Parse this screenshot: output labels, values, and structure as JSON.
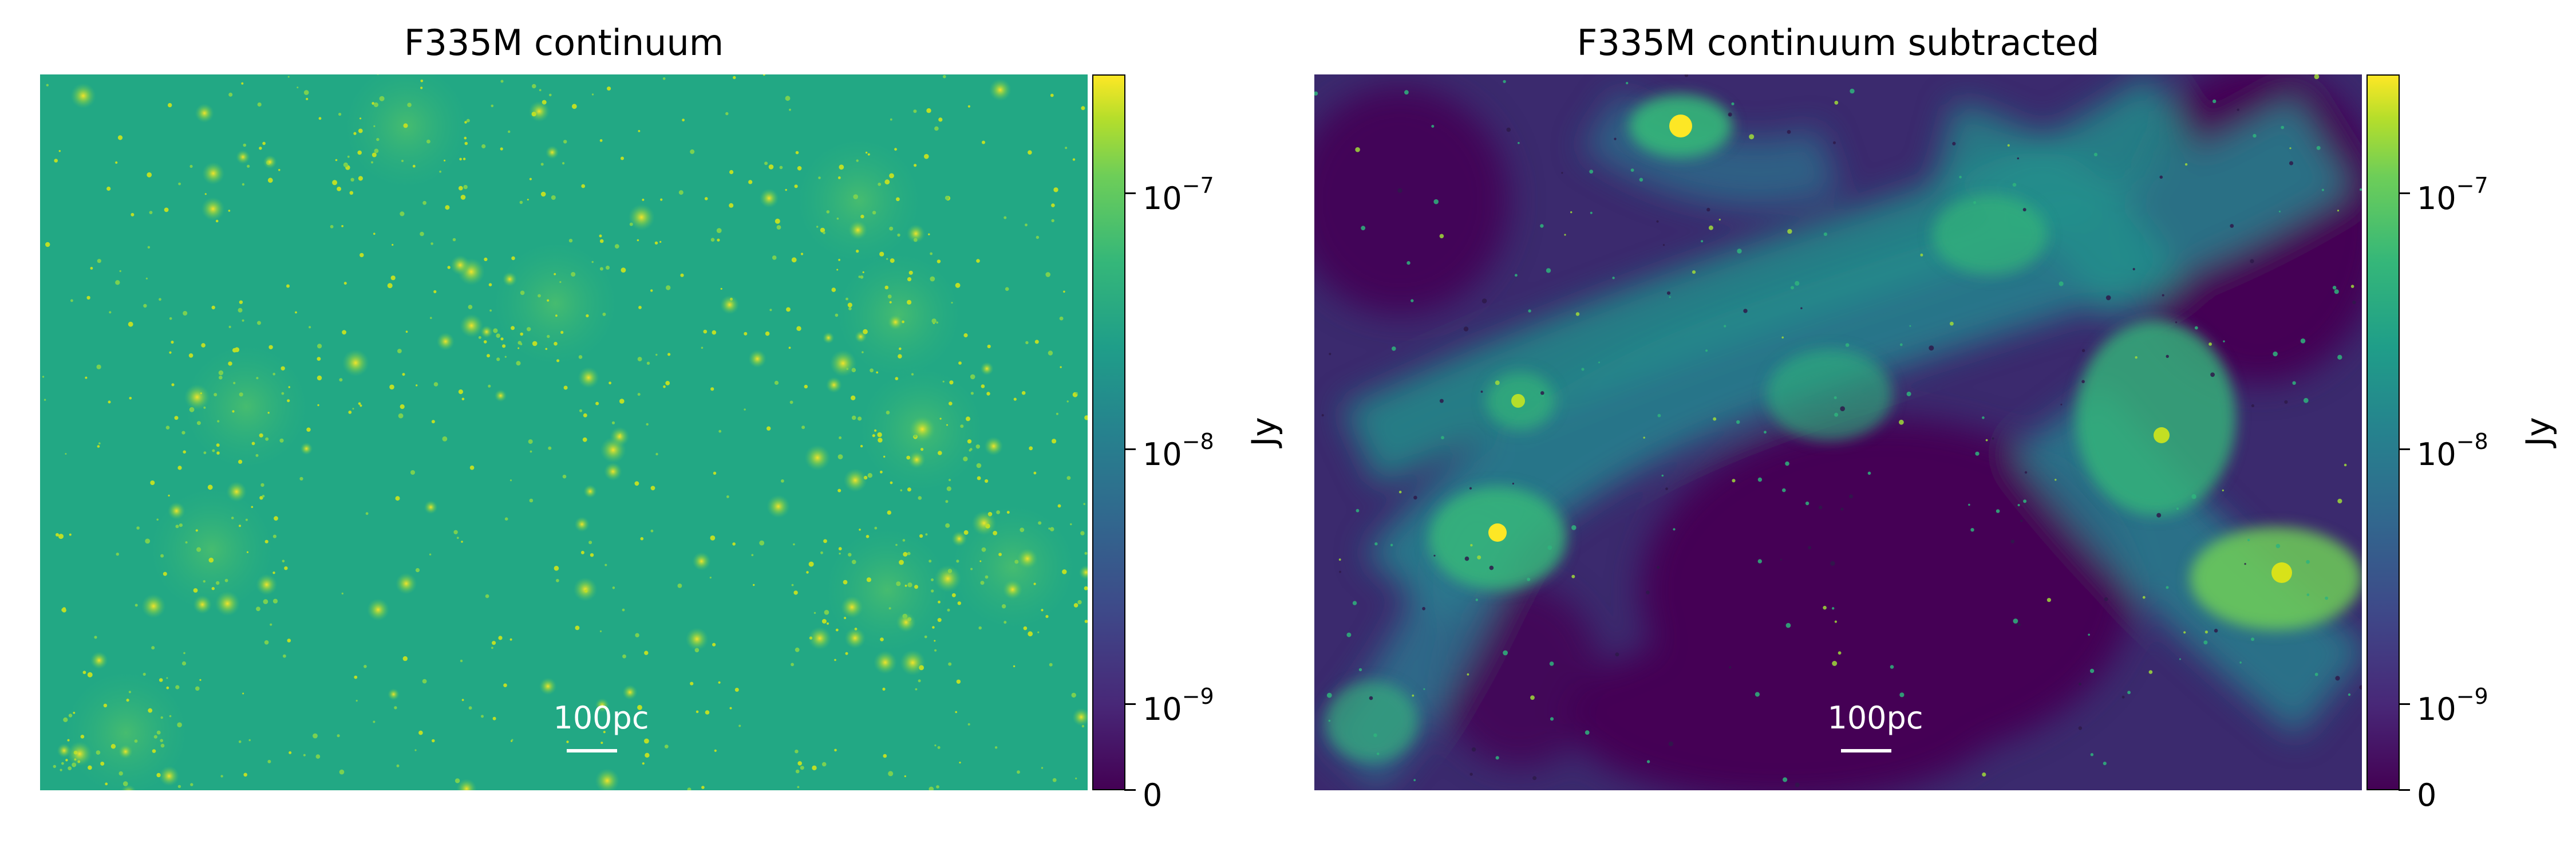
{
  "panels": [
    {
      "title": "F335M continuum",
      "scalebar": "100pc",
      "colorbar": {
        "unit": "Jy",
        "ticks": [
          {
            "base": "10",
            "exp": "−7"
          },
          {
            "base": "10",
            "exp": "−8"
          },
          {
            "base": "10",
            "exp": "−9"
          },
          {
            "base": "0",
            "exp": ""
          }
        ]
      }
    },
    {
      "title": "F335M continuum subtracted",
      "scalebar": "100pc",
      "colorbar": {
        "unit": "Jy",
        "ticks": [
          {
            "base": "10",
            "exp": "−7"
          },
          {
            "base": "10",
            "exp": "−8"
          },
          {
            "base": "10",
            "exp": "−9"
          },
          {
            "base": "0",
            "exp": ""
          }
        ]
      }
    }
  ],
  "colormap": {
    "name": "viridis",
    "low": "#440154",
    "mid": "#21918c",
    "high": "#fde725"
  }
}
